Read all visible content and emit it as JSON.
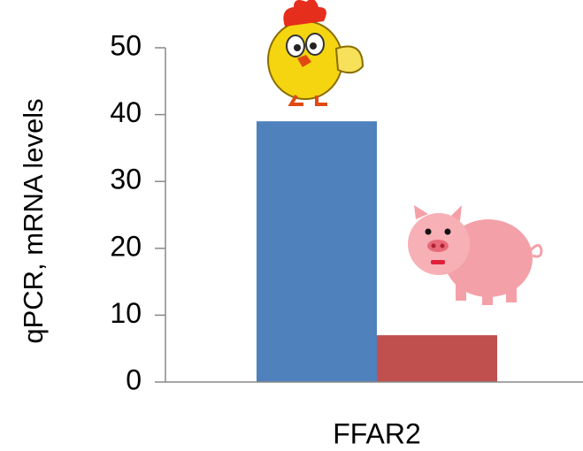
{
  "chart_data": {
    "type": "bar",
    "ylabel": "qPCR, mRNA levels",
    "categories": [
      "FFAR2"
    ],
    "series": [
      {
        "color": "#4f81bd",
        "values": [
          39
        ]
      },
      {
        "color": "#c0504d",
        "values": [
          7
        ]
      }
    ],
    "ylim": [
      0,
      50
    ],
    "yticks": [
      0,
      10,
      20,
      30,
      40,
      50
    ]
  }
}
